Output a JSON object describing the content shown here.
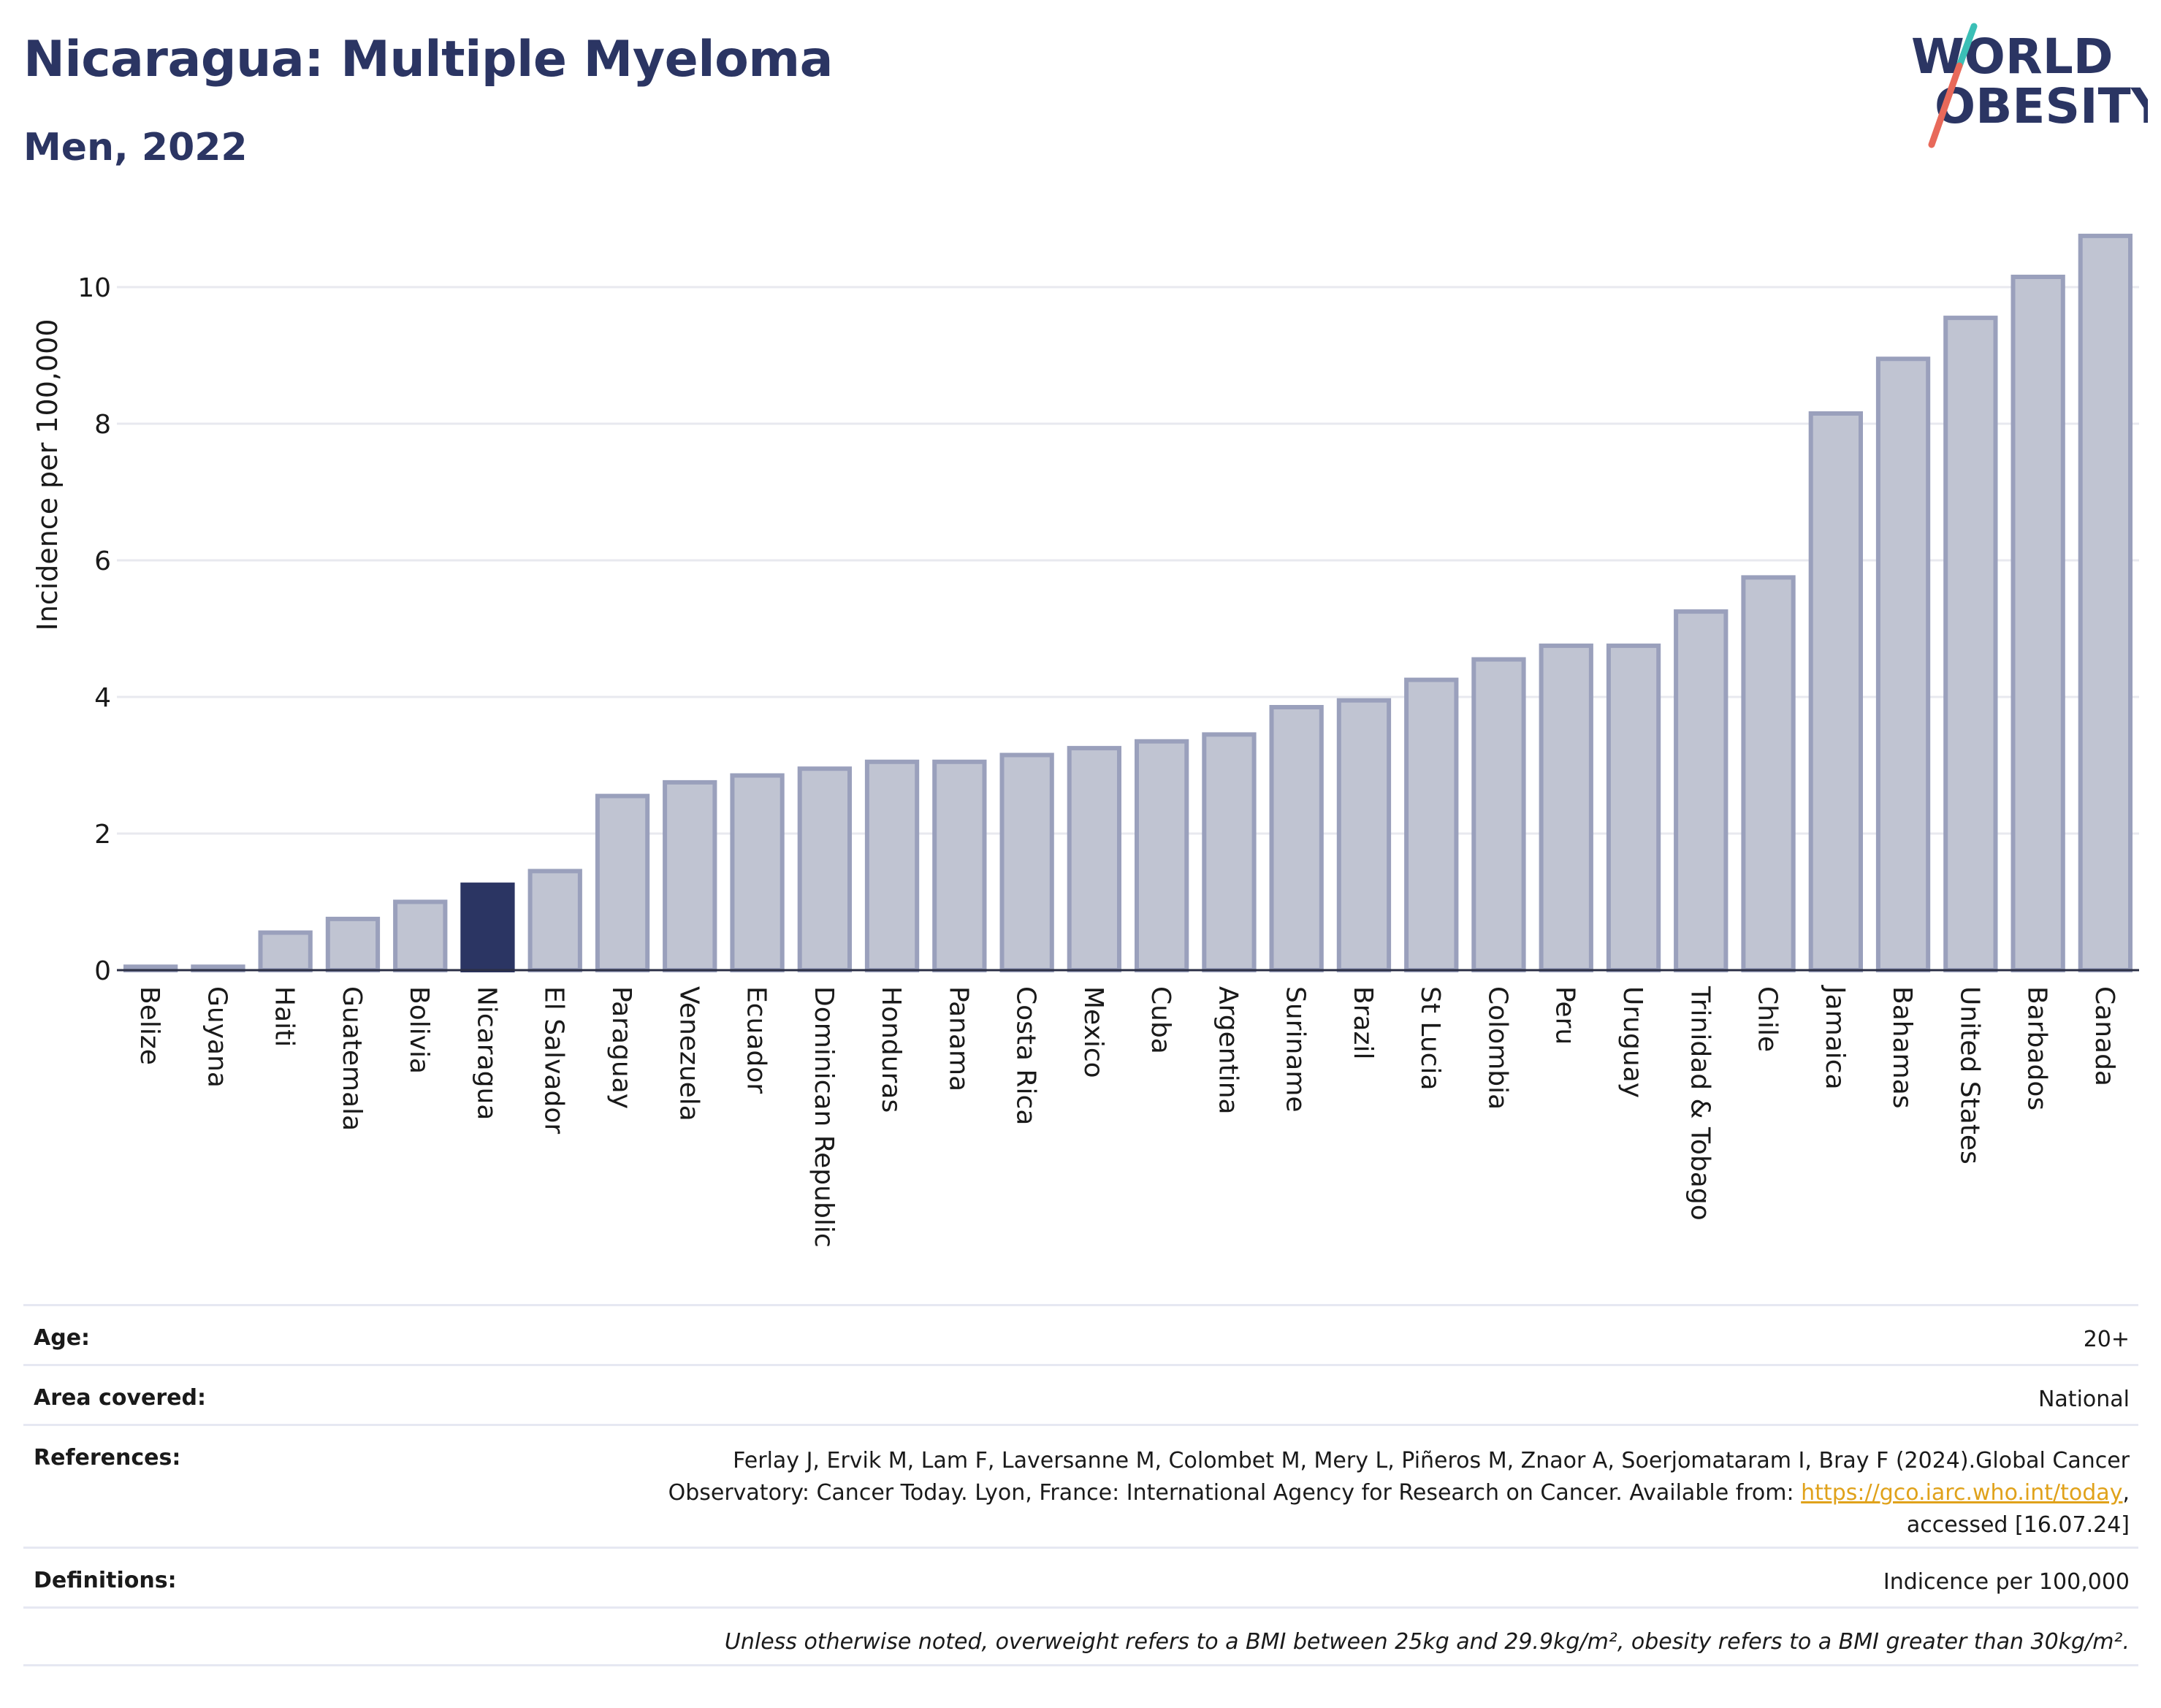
{
  "header": {
    "title": "Nicaragua: Multiple Myeloma",
    "subtitle": "Men, 2022"
  },
  "logo": {
    "line1": "WORLD",
    "line2": "OBESITY"
  },
  "chart_data": {
    "type": "bar",
    "ylabel": "Incidence per 100,000",
    "ylim": [
      0,
      11
    ],
    "yticks": [
      0,
      2,
      4,
      6,
      8,
      10
    ],
    "grid": true,
    "highlight": "Nicaragua",
    "colors": {
      "bar": "#c0c4d2",
      "bar_border": "#9aa0bc",
      "highlight": "#2b3563"
    },
    "categories": [
      "Belize",
      "Guyana",
      "Haiti",
      "Guatemala",
      "Bolivia",
      "Nicaragua",
      "El Salvador",
      "Paraguay",
      "Venezuela",
      "Ecuador",
      "Dominican Republic",
      "Honduras",
      "Panama",
      "Costa Rica",
      "Mexico",
      "Cuba",
      "Argentina",
      "Suriname",
      "Brazil",
      "St Lucia",
      "Colombia",
      "Peru",
      "Uruguay",
      "Trinidad & Tobago",
      "Chile",
      "Jamaica",
      "Bahamas",
      "United States",
      "Barbados",
      "Canada"
    ],
    "values": [
      0.05,
      0.05,
      0.55,
      0.75,
      1.0,
      1.25,
      1.45,
      2.55,
      2.75,
      2.85,
      2.95,
      3.05,
      3.05,
      3.15,
      3.25,
      3.35,
      3.45,
      3.85,
      3.95,
      4.25,
      4.55,
      4.75,
      4.75,
      5.25,
      5.75,
      8.15,
      8.95,
      9.55,
      10.15,
      10.75
    ]
  },
  "info": {
    "age_label": "Age:",
    "age_value": "20+",
    "area_label": "Area covered:",
    "area_value": "National",
    "references_label": "References:",
    "references_line1": "Ferlay J, Ervik M, Lam F, Laversanne M, Colombet M, Mery L, Piñeros M, Znaor A, Soerjomataram I, Bray F (2024).Global Cancer",
    "references_line2": "Observatory: Cancer Today. Lyon, France: International Agency for Research on Cancer. Available from: ",
    "references_link": "https://gco.iarc.who.int/today",
    "references_line2_end": ",",
    "references_line3": "accessed [16.07.24]",
    "definitions_label": "Definitions:",
    "definitions_value": "Indicence per 100,000",
    "note": "Unless otherwise noted, overweight refers to a BMI between 25kg and 29.9kg/m², obesity refers to a BMI greater than 30kg/m²."
  }
}
